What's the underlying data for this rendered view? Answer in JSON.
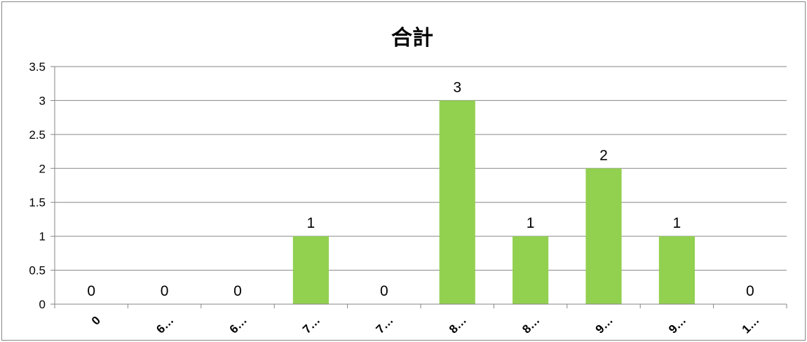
{
  "chart_data": {
    "type": "bar",
    "title": "合計",
    "categories": [
      "0",
      "6…",
      "6…",
      "7…",
      "7…",
      "8…",
      "8…",
      "9…",
      "9…",
      "1…"
    ],
    "values": [
      0,
      0,
      0,
      1,
      0,
      3,
      1,
      2,
      1,
      0
    ],
    "data_labels": [
      "0",
      "0",
      "0",
      "1",
      "0",
      "3",
      "1",
      "2",
      "1",
      "0"
    ],
    "y_ticks": [
      "0",
      "0.5",
      "1",
      "1.5",
      "2",
      "2.5",
      "3",
      "3.5"
    ],
    "ylim": [
      0,
      3.5
    ],
    "xlabel": "",
    "ylabel": "",
    "grid": true,
    "legend": "none",
    "colors": {
      "bar": "#92D050",
      "grid": "#868686",
      "axis": "#868686"
    }
  }
}
